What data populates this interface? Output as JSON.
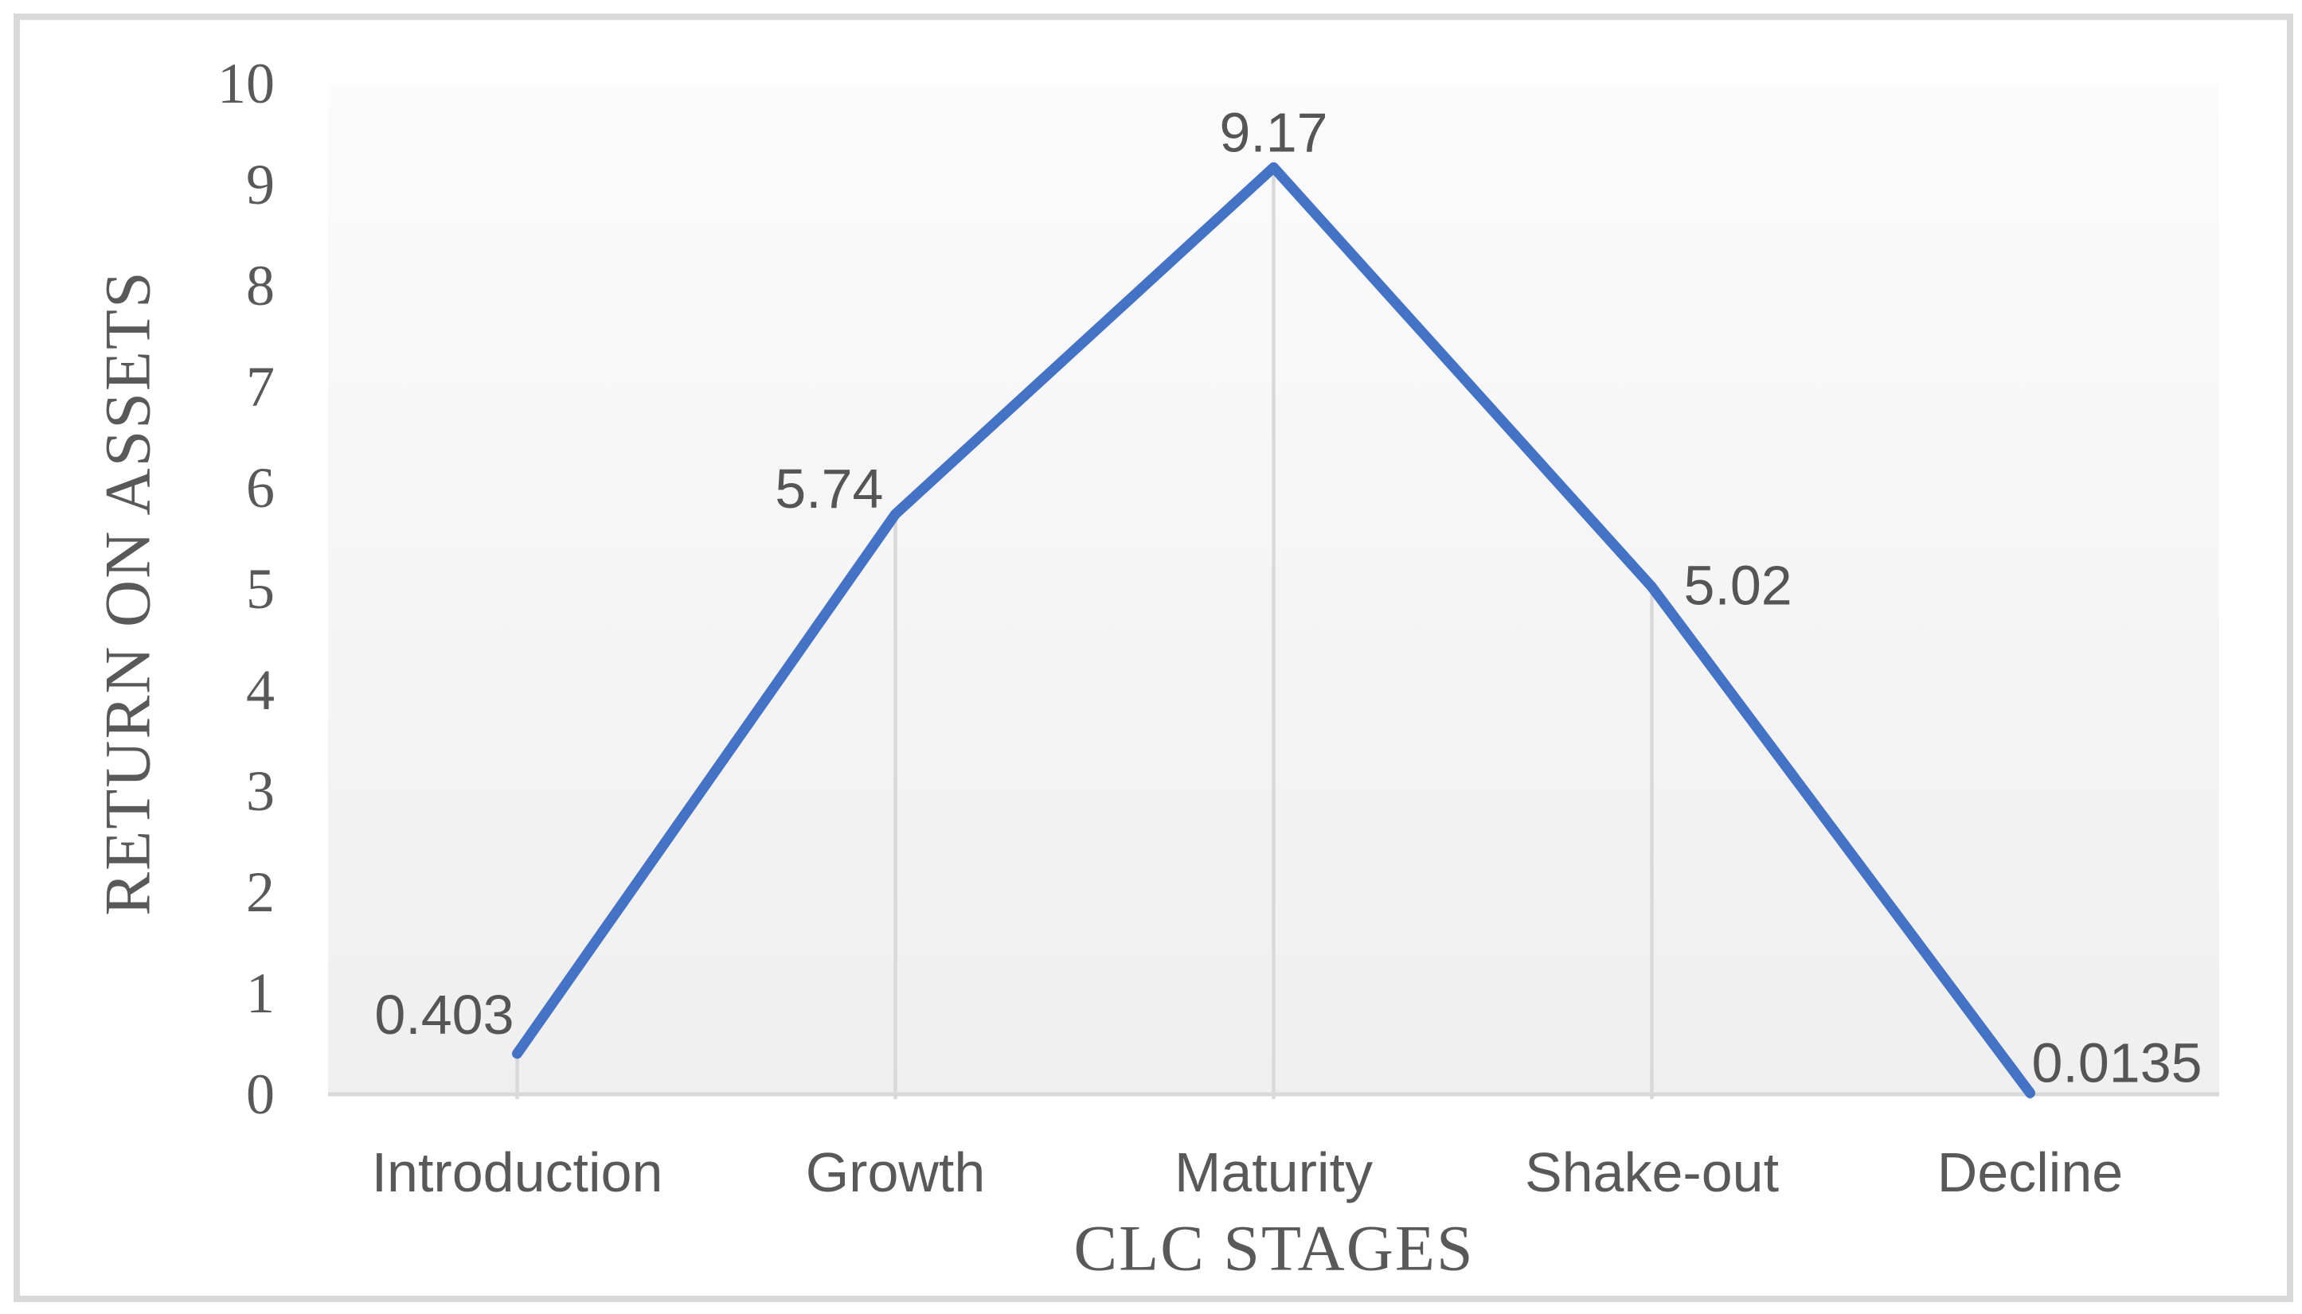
{
  "figure": {
    "border_color": "#D9D9D9",
    "background_color": "#FFFFFF",
    "plot_bg_top": "#FBFBFB",
    "plot_bg_bottom": "#EFEFEF"
  },
  "chart_data": {
    "type": "line",
    "title": "",
    "categories": [
      "Introduction",
      "Growth",
      "Maturity",
      "Shake-out",
      "Decline"
    ],
    "series": [
      {
        "name": "Return on assets",
        "values": [
          0.403,
          5.74,
          9.17,
          5.02,
          0.0135
        ]
      }
    ],
    "data_labels": [
      "0.403",
      "5.74",
      "9.17",
      "5.02",
      "0.0135"
    ],
    "data_label_positions": [
      "left-above",
      "left",
      "above",
      "right-below",
      "right"
    ],
    "xlabel": "CLC STAGES",
    "ylabel": "RETURN ON ASSETS",
    "ylim": [
      0,
      10
    ],
    "ytick_step": 1,
    "yticks": [
      "0",
      "1",
      "2",
      "3",
      "4",
      "5",
      "6",
      "7",
      "8",
      "9",
      "10"
    ],
    "grid": "vertical-drop-lines-only",
    "legend": "none",
    "line_color": "#4472C4",
    "axis_color": "#D9D9D9",
    "drop_line_color": "#D9D9D9",
    "text_color": "#595959"
  }
}
